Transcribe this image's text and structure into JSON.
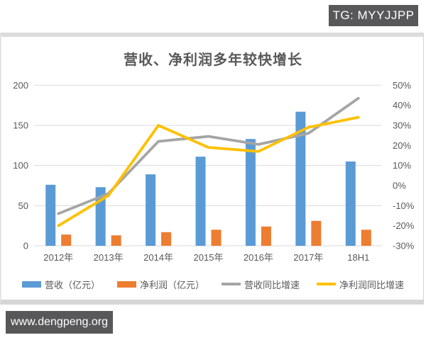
{
  "badges": {
    "top": "TG: MYYJJPP",
    "bottom": "www.dengpeng.org"
  },
  "colors": {
    "revenue_bar": "#5B9BD5",
    "net_profit_bar": "#ED7D31",
    "revenue_growth_line": "#A5A5A5",
    "net_profit_growth_line": "#FFC000",
    "grid": "#D9D9D9",
    "text": "#595959",
    "badge_bg": "#58585a"
  },
  "chart_data": {
    "type": "bar",
    "subtype": "combo-bar-line-dual-axis",
    "title": "营收、净利润多年较快增长",
    "categories": [
      "2012年",
      "2013年",
      "2014年",
      "2015年",
      "2016年",
      "2017年",
      "18H1"
    ],
    "bar_series": [
      {
        "key": "revenue",
        "name": "营收（亿元）",
        "color": "#5B9BD5",
        "axis": "left",
        "values": [
          76,
          73,
          89,
          111,
          133,
          167,
          105
        ]
      },
      {
        "key": "net-profit",
        "name": "净利润（亿元）",
        "color": "#ED7D31",
        "axis": "left",
        "values": [
          14,
          13,
          17,
          20,
          24,
          31,
          20
        ]
      }
    ],
    "line_series": [
      {
        "key": "revenue-growth",
        "name": "营收同比增速",
        "color": "#A5A5A5",
        "axis": "right",
        "values_pct": [
          -14,
          -4,
          22,
          24.5,
          20.5,
          26,
          43.5
        ]
      },
      {
        "key": "net-profit-growth",
        "name": "净利润同比增速",
        "color": "#FFC000",
        "axis": "right",
        "values_pct": [
          -20,
          -5,
          30,
          19,
          17,
          29,
          34
        ]
      }
    ],
    "left_axis": {
      "min": 0,
      "max": 200,
      "ticks": [
        0,
        50,
        100,
        150,
        200
      ]
    },
    "right_axis": {
      "min": -30,
      "max": 50,
      "tick_values": [
        50,
        40,
        30,
        20,
        10,
        0,
        -10,
        -20,
        -30
      ],
      "tick_labels": [
        "50%",
        "40%",
        "30%",
        "20%",
        "10%",
        "0%",
        "-10%",
        "-20%",
        "-30%"
      ]
    },
    "grid": true,
    "legend_position": "bottom"
  }
}
